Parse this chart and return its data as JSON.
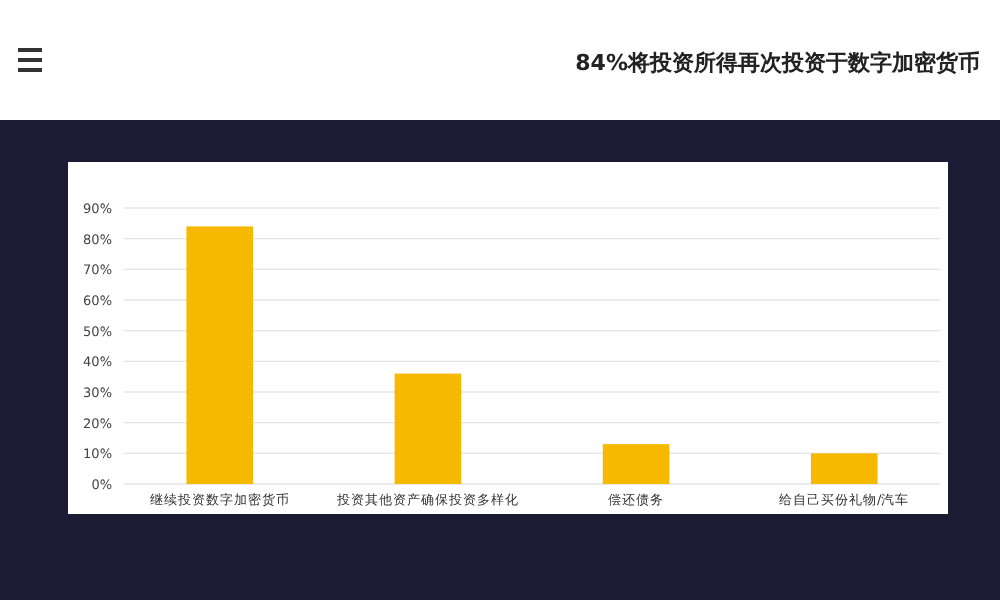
{
  "chart_data": {
    "type": "bar",
    "title": "84%将投资所得再次投资于数字加密货币",
    "categories": [
      "继续投资数字加密货币",
      "投资其他资产确保投资多样化",
      "偿还债务",
      "给自己买份礼物/汽车"
    ],
    "values": [
      84,
      36,
      13,
      10
    ],
    "color": "#f7b900",
    "ylim": [
      0,
      90
    ],
    "yticks": [
      {
        "value": 0,
        "label": "0%"
      },
      {
        "value": 10,
        "label": "10%"
      },
      {
        "value": 20,
        "label": "20%"
      },
      {
        "value": 30,
        "label": "30%"
      },
      {
        "value": 40,
        "label": "40%"
      },
      {
        "value": 50,
        "label": "50%"
      },
      {
        "value": 60,
        "label": "60%"
      },
      {
        "value": 70,
        "label": "70%"
      },
      {
        "value": 80,
        "label": "80%"
      },
      {
        "value": 90,
        "label": "90%"
      }
    ],
    "grid": "y"
  }
}
